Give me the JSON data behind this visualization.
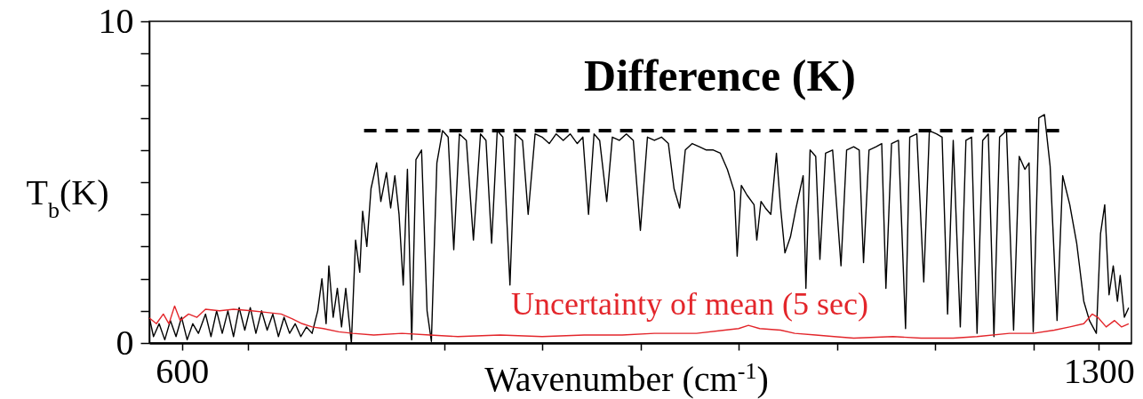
{
  "chart_data": {
    "type": "line",
    "title": "Difference (K)",
    "xlabel": "Wavenumber (cm$^{-1}$)",
    "ylabel": "T$_{b}$(K)",
    "xlim": [
      575,
      1325
    ],
    "xticks": [
      600,
      {
        "value": 650,
        "label": null
      },
      {
        "value": 725,
        "label": null
      },
      {
        "value": 800,
        "label": null
      },
      {
        "value": 875,
        "label": null
      },
      {
        "value": 950,
        "label": null
      },
      {
        "value": 1025,
        "label": null
      },
      {
        "value": 1100,
        "label": null
      },
      {
        "value": 1175,
        "label": null
      },
      {
        "value": 1250,
        "label": null
      },
      1300
    ],
    "ylim": [
      0,
      10
    ],
    "yticks": [
      0,
      {
        "value": 1,
        "label": null
      },
      {
        "value": 2,
        "label": null
      },
      {
        "value": 3,
        "label": null
      },
      {
        "value": 4,
        "label": null
      },
      {
        "value": 5,
        "label": null
      },
      {
        "value": 6,
        "label": null
      },
      {
        "value": 7,
        "label": null
      },
      {
        "value": 8,
        "label": null
      },
      {
        "value": 9,
        "label": null
      },
      10
    ],
    "grid": false,
    "series": [
      {
        "color": "#000000",
        "x": [
          575,
          578.2,
          582.5,
          586.8,
          591.1,
          595.4,
          599.6,
          603.9,
          608.2,
          612.5,
          617.9,
          622.1,
          626.4,
          630.7,
          635,
          639.3,
          643.6,
          647.9,
          652.1,
          656.4,
          660.7,
          665,
          669.3,
          673.6,
          677.9,
          682.1,
          686.4,
          690.7,
          695,
          699.3,
          703.6,
          706.8,
          710,
          712.1,
          715.4,
          718.6,
          721.8,
          725,
          729.3,
          732.5,
          735.7,
          737.9,
          741.1,
          744.3,
          748.6,
          751.8,
          756.1,
          759.3,
          762.5,
          765.7,
          768.9,
          772.1,
          775.4,
          778.6,
          782.9,
          787.1,
          790.4,
          794.6,
          798.9,
          803.2,
          807.5,
          811.8,
          817.1,
          822.5,
          827.9,
          832.1,
          836.4,
          840.7,
          845,
          850.4,
          854.6,
          860,
          864.3,
          869.6,
          875,
          880.4,
          885.7,
          891.1,
          896.4,
          901.8,
          906.1,
          910.4,
          914.6,
          918.9,
          924.3,
          928.6,
          933.9,
          939.3,
          944.6,
          950,
          955.4,
          960.7,
          966.1,
          971.4,
          975.7,
          980,
          984.3,
          989.6,
          995,
          1000.4,
          1005.7,
          1011.1,
          1016.4,
          1021.8,
          1023.9,
          1027.1,
          1031.4,
          1036.8,
          1038.9,
          1042.1,
          1045.4,
          1049.6,
          1053.9,
          1057.1,
          1060.4,
          1064.6,
          1068.9,
          1074.3,
          1076.4,
          1079.6,
          1083.9,
          1087.1,
          1091.4,
          1096.8,
          1103.2,
          1107.5,
          1112.9,
          1117.1,
          1120.4,
          1124.6,
          1130,
          1134.3,
          1137.5,
          1141.8,
          1147.1,
          1152.5,
          1155.7,
          1161.1,
          1166.4,
          1170.7,
          1176.1,
          1180.4,
          1184.6,
          1188.9,
          1194.3,
          1198.6,
          1202.9,
          1207.1,
          1211.4,
          1215.7,
          1220,
          1224.3,
          1229.6,
          1235,
          1239.3,
          1243.6,
          1246.8,
          1250,
          1254.3,
          1258.6,
          1262.9,
          1268.2,
          1272.5,
          1277.9,
          1283.2,
          1288.6,
          1292.9,
          1298.2,
          1301.4,
          1304.6,
          1307.9,
          1311.1,
          1314.3,
          1316.4,
          1319.6,
          1322.9
        ],
        "values": [
          0.8,
          0.2,
          0.6,
          0.1,
          0.7,
          0.2,
          0.8,
          0.1,
          0.6,
          0.3,
          0.9,
          0.2,
          1.0,
          0.3,
          1.0,
          0.2,
          1.1,
          0.4,
          1.1,
          0.3,
          1.0,
          0.4,
          0.9,
          0.2,
          0.8,
          0.3,
          0.6,
          0.2,
          0.5,
          0.3,
          1.0,
          2.0,
          0.6,
          2.4,
          0.8,
          1.7,
          0.5,
          1.7,
          0.0,
          3.2,
          2.2,
          4.1,
          3.0,
          4.8,
          5.6,
          4.4,
          5.3,
          4.2,
          5.2,
          4.0,
          1.8,
          5.4,
          0.1,
          5.7,
          6.0,
          1.0,
          0.05,
          5.6,
          6.6,
          6.4,
          2.9,
          6.5,
          6.3,
          3.2,
          6.5,
          6.3,
          3.1,
          6.6,
          6.4,
          1.8,
          6.5,
          6.3,
          4.0,
          6.5,
          6.4,
          6.2,
          6.5,
          6.3,
          6.5,
          6.2,
          6.4,
          4.0,
          6.5,
          6.3,
          4.4,
          6.4,
          6.3,
          6.5,
          6.3,
          3.5,
          6.4,
          6.3,
          6.4,
          6.2,
          4.8,
          4.2,
          6.0,
          6.2,
          6.1,
          6.0,
          6.0,
          5.9,
          5.4,
          4.7,
          2.7,
          4.9,
          4.6,
          4.3,
          3.2,
          4.4,
          4.2,
          4.0,
          5.9,
          4.2,
          2.8,
          3.3,
          4.2,
          5.2,
          1.7,
          6.0,
          5.8,
          2.6,
          5.9,
          6.0,
          2.4,
          6.0,
          6.1,
          6.0,
          2.5,
          6.0,
          6.1,
          6.2,
          1.7,
          6.2,
          6.3,
          0.45,
          6.4,
          6.5,
          1.9,
          6.6,
          6.5,
          6.4,
          0.9,
          6.3,
          0.5,
          6.3,
          6.4,
          0.3,
          6.3,
          6.5,
          0.2,
          6.4,
          6.6,
          0.4,
          5.8,
          5.4,
          5.6,
          0.35,
          7.0,
          7.1,
          5.5,
          0.7,
          5.2,
          4.3,
          3.1,
          1.3,
          0.7,
          0.3,
          3.4,
          4.3,
          1.5,
          2.4,
          1.3,
          2.1,
          0.8,
          1.1
        ]
      },
      {
        "name": "Uncertainty of mean (5 sec)",
        "color": "#e3262b",
        "x": [
          575,
          580.4,
          585.7,
          590,
          594.3,
          598.6,
          605,
          611.4,
          617.9,
          628.6,
          639.3,
          653.2,
          665,
          675.7,
          684.3,
          691.8,
          699.3,
          707.9,
          719.6,
          730.4,
          746.4,
          767.9,
          789.3,
          810.7,
          842.9,
          875,
          907.1,
          936.1,
          960.7,
          992.9,
          1014.3,
          1025,
          1032.5,
          1041.1,
          1057.1,
          1067.9,
          1083.9,
          1097.9,
          1112.9,
          1142.9,
          1164.3,
          1188.9,
          1207.1,
          1231.8,
          1250,
          1266.1,
          1277.9,
          1288.6,
          1295,
          1299.3,
          1305.7,
          1312.1,
          1317.5,
          1322.9
        ],
        "values": [
          0.78,
          0.6,
          0.9,
          0.6,
          1.15,
          0.7,
          0.9,
          0.8,
          1.05,
          1.0,
          1.05,
          1.0,
          0.95,
          0.9,
          0.75,
          0.6,
          0.5,
          0.45,
          0.35,
          0.3,
          0.25,
          0.3,
          0.25,
          0.2,
          0.25,
          0.2,
          0.25,
          0.25,
          0.3,
          0.3,
          0.4,
          0.45,
          0.55,
          0.45,
          0.4,
          0.3,
          0.25,
          0.2,
          0.15,
          0.2,
          0.15,
          0.15,
          0.2,
          0.3,
          0.3,
          0.4,
          0.5,
          0.6,
          0.9,
          0.8,
          0.5,
          0.7,
          0.5,
          0.6
        ]
      },
      {
        "color": "#000000",
        "line_style": "dashed",
        "x": [
          739,
          1272
        ],
        "values": [
          6.6,
          6.6
        ]
      }
    ]
  }
}
